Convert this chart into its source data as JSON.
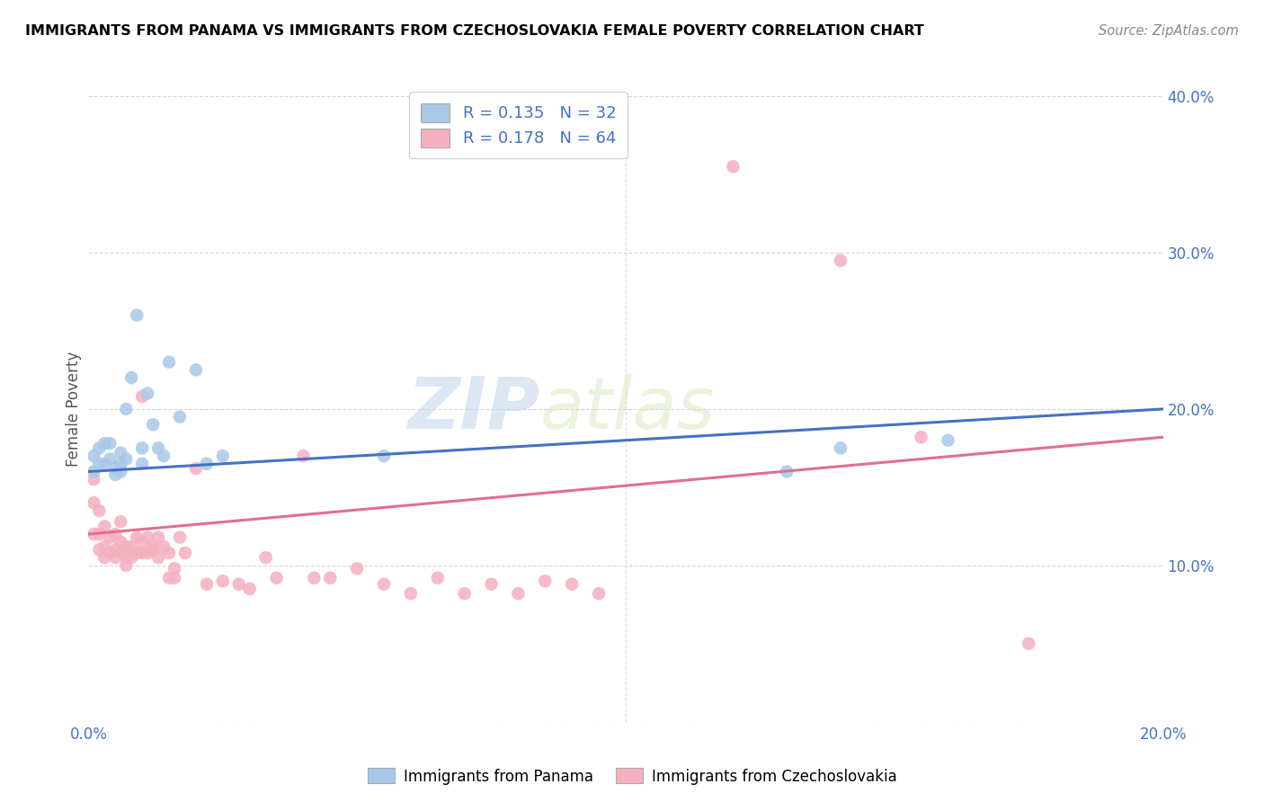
{
  "title": "IMMIGRANTS FROM PANAMA VS IMMIGRANTS FROM CZECHOSLOVAKIA FEMALE POVERTY CORRELATION CHART",
  "source": "Source: ZipAtlas.com",
  "xlabel_blue": "Immigrants from Panama",
  "xlabel_pink": "Immigrants from Czechoslovakia",
  "ylabel": "Female Poverty",
  "xlim": [
    0,
    0.2
  ],
  "ylim": [
    0,
    0.4
  ],
  "color_blue": "#a8c8e8",
  "color_pink": "#f4b0c0",
  "color_blue_line": "#4472c4",
  "color_pink_line": "#e07090",
  "watermark_zip": "ZIP",
  "watermark_atlas": "atlas",
  "blue_line_x0": 0.0,
  "blue_line_y0": 0.16,
  "blue_line_x1": 0.2,
  "blue_line_y1": 0.2,
  "pink_line_x0": 0.0,
  "pink_line_y0": 0.12,
  "pink_line_x1": 0.2,
  "pink_line_y1": 0.182,
  "blue_scatter_x": [
    0.001,
    0.001,
    0.002,
    0.002,
    0.003,
    0.003,
    0.004,
    0.004,
    0.005,
    0.005,
    0.006,
    0.006,
    0.006,
    0.007,
    0.007,
    0.008,
    0.009,
    0.01,
    0.01,
    0.011,
    0.012,
    0.013,
    0.014,
    0.015,
    0.017,
    0.02,
    0.022,
    0.025,
    0.055,
    0.13,
    0.14,
    0.16
  ],
  "blue_scatter_y": [
    0.16,
    0.17,
    0.165,
    0.175,
    0.165,
    0.178,
    0.168,
    0.178,
    0.162,
    0.158,
    0.165,
    0.172,
    0.16,
    0.168,
    0.2,
    0.22,
    0.26,
    0.175,
    0.165,
    0.21,
    0.19,
    0.175,
    0.17,
    0.23,
    0.195,
    0.225,
    0.165,
    0.17,
    0.17,
    0.16,
    0.175,
    0.18
  ],
  "pink_scatter_x": [
    0.001,
    0.001,
    0.001,
    0.002,
    0.002,
    0.002,
    0.003,
    0.003,
    0.003,
    0.004,
    0.004,
    0.005,
    0.005,
    0.005,
    0.006,
    0.006,
    0.006,
    0.007,
    0.007,
    0.007,
    0.008,
    0.008,
    0.009,
    0.009,
    0.01,
    0.01,
    0.01,
    0.011,
    0.011,
    0.012,
    0.012,
    0.013,
    0.013,
    0.014,
    0.015,
    0.015,
    0.016,
    0.016,
    0.017,
    0.018,
    0.02,
    0.022,
    0.025,
    0.028,
    0.03,
    0.033,
    0.035,
    0.04,
    0.042,
    0.045,
    0.05,
    0.055,
    0.06,
    0.065,
    0.07,
    0.075,
    0.08,
    0.085,
    0.09,
    0.095,
    0.12,
    0.14,
    0.155,
    0.175
  ],
  "pink_scatter_y": [
    0.155,
    0.14,
    0.12,
    0.135,
    0.12,
    0.11,
    0.125,
    0.112,
    0.105,
    0.118,
    0.108,
    0.12,
    0.11,
    0.105,
    0.115,
    0.108,
    0.128,
    0.112,
    0.105,
    0.1,
    0.112,
    0.105,
    0.118,
    0.108,
    0.115,
    0.108,
    0.208,
    0.108,
    0.118,
    0.112,
    0.11,
    0.105,
    0.118,
    0.112,
    0.108,
    0.092,
    0.098,
    0.092,
    0.118,
    0.108,
    0.162,
    0.088,
    0.09,
    0.088,
    0.085,
    0.105,
    0.092,
    0.17,
    0.092,
    0.092,
    0.098,
    0.088,
    0.082,
    0.092,
    0.082,
    0.088,
    0.082,
    0.09,
    0.088,
    0.082,
    0.355,
    0.295,
    0.182,
    0.05
  ]
}
